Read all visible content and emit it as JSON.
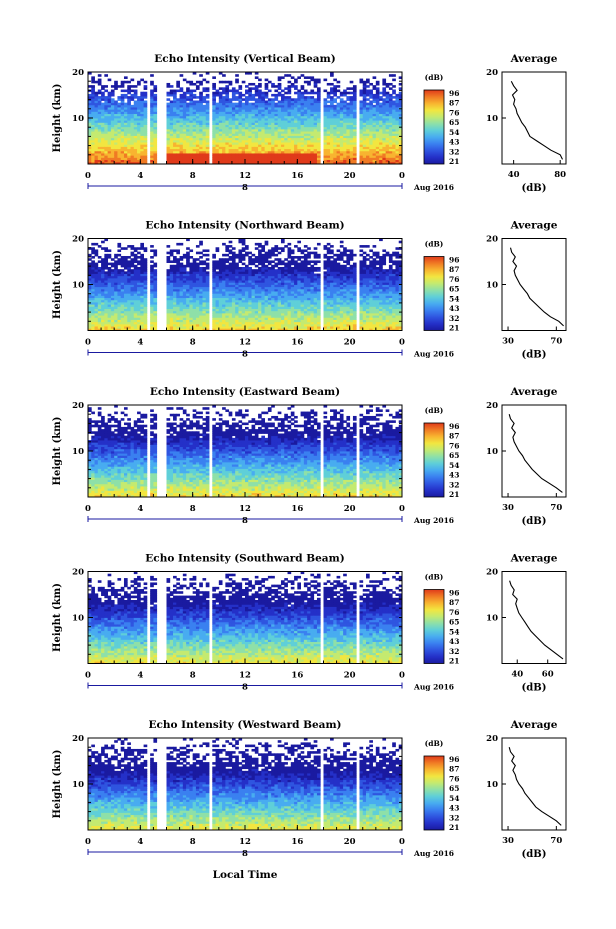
{
  "figure": {
    "time_label": "Local Time",
    "date_day": "8",
    "date_month": "Aug 2016",
    "y_label": "Height (km)",
    "cbar_unit": "(dB)",
    "avg_title": "Average",
    "avg_xlabel": "(dB)"
  },
  "colors": {
    "colormap": [
      "#1a1aa0",
      "#2430c8",
      "#2f55e0",
      "#3a80f0",
      "#48acf0",
      "#5fcfd8",
      "#8ee0a8",
      "#c4ea70",
      "#f2e640",
      "#f8b430",
      "#f07a24",
      "#e03a1a"
    ],
    "gap": "#ffffff",
    "axis_line": "#000000",
    "date_line": "#1a1aa0"
  },
  "chart_data": [
    {
      "type": "heatmap",
      "title": "Echo Intensity (Vertical Beam)",
      "xlabel": "",
      "ylabel": "Height (km)",
      "xlim": [
        0,
        24
      ],
      "ylim": [
        0,
        20
      ],
      "xticks": [
        "0",
        "4",
        "8",
        "12",
        "16",
        "20",
        "0"
      ],
      "yticks": [
        "20",
        "10"
      ],
      "colorbar_ticks": [
        "96",
        "87",
        "76",
        "65",
        "54",
        "43",
        "32",
        "21"
      ],
      "colorbar_range": [
        21,
        96
      ],
      "data_gaps_hours": [
        [
          4.6,
          4.8
        ],
        [
          5.3,
          5.9
        ],
        [
          9.3,
          9.5
        ],
        [
          17.7,
          17.9
        ],
        [
          20.5,
          20.7
        ]
      ],
      "average_profile": {
        "xlabel": "(dB)",
        "xticks": [
          "40",
          "80"
        ],
        "xlim": [
          30,
          85
        ],
        "ylim": [
          0,
          20
        ],
        "height_km": [
          1,
          2,
          3,
          4,
          5,
          6,
          7,
          8,
          9,
          10,
          11,
          12,
          13,
          14,
          15,
          16,
          17,
          18
        ],
        "value_db": [
          82,
          80,
          72,
          66,
          60,
          54,
          52,
          50,
          47,
          45,
          43,
          42,
          40,
          41,
          39,
          43,
          40,
          38
        ]
      }
    },
    {
      "type": "heatmap",
      "title": "Echo Intensity (Northward Beam)",
      "xlabel": "",
      "ylabel": "Height (km)",
      "xlim": [
        0,
        24
      ],
      "ylim": [
        0,
        20
      ],
      "xticks": [
        "0",
        "4",
        "8",
        "12",
        "16",
        "20",
        "0"
      ],
      "yticks": [
        "20",
        "10"
      ],
      "colorbar_ticks": [
        "96",
        "87",
        "76",
        "65",
        "54",
        "43",
        "32",
        "21"
      ],
      "colorbar_range": [
        21,
        96
      ],
      "data_gaps_hours": [
        [
          4.6,
          4.8
        ],
        [
          5.3,
          5.9
        ],
        [
          9.3,
          9.5
        ],
        [
          17.7,
          17.9
        ],
        [
          20.5,
          20.7
        ]
      ],
      "average_profile": {
        "xlabel": "(dB)",
        "xticks": [
          "30",
          "70"
        ],
        "xlim": [
          25,
          78
        ],
        "ylim": [
          0,
          20
        ],
        "height_km": [
          1,
          2,
          3,
          4,
          5,
          6,
          7,
          8,
          9,
          10,
          11,
          12,
          13,
          14,
          15,
          16,
          17,
          18
        ],
        "value_db": [
          76,
          72,
          65,
          60,
          56,
          52,
          48,
          46,
          43,
          40,
          38,
          36,
          35,
          37,
          34,
          36,
          33,
          32
        ]
      }
    },
    {
      "type": "heatmap",
      "title": "Echo Intensity (Eastward Beam)",
      "xlabel": "",
      "ylabel": "Height (km)",
      "xlim": [
        0,
        24
      ],
      "ylim": [
        0,
        20
      ],
      "xticks": [
        "0",
        "4",
        "8",
        "12",
        "16",
        "20",
        "0"
      ],
      "yticks": [
        "20",
        "10"
      ],
      "colorbar_ticks": [
        "96",
        "87",
        "76",
        "65",
        "54",
        "43",
        "32",
        "21"
      ],
      "colorbar_range": [
        21,
        96
      ],
      "data_gaps_hours": [
        [
          4.6,
          4.8
        ],
        [
          5.3,
          5.9
        ],
        [
          9.3,
          9.5
        ],
        [
          17.7,
          17.9
        ],
        [
          20.5,
          20.7
        ]
      ],
      "average_profile": {
        "xlabel": "(dB)",
        "xticks": [
          "30",
          "70"
        ],
        "xlim": [
          25,
          78
        ],
        "ylim": [
          0,
          20
        ],
        "height_km": [
          1,
          2,
          3,
          4,
          5,
          6,
          7,
          8,
          9,
          10,
          11,
          12,
          13,
          14,
          15,
          16,
          17,
          18
        ],
        "value_db": [
          75,
          70,
          64,
          58,
          54,
          50,
          47,
          44,
          42,
          39,
          37,
          35,
          34,
          36,
          33,
          35,
          32,
          31
        ]
      }
    },
    {
      "type": "heatmap",
      "title": "Echo Intensity (Southward Beam)",
      "xlabel": "",
      "ylabel": "Height (km)",
      "xlim": [
        0,
        24
      ],
      "ylim": [
        0,
        20
      ],
      "xticks": [
        "0",
        "4",
        "8",
        "12",
        "16",
        "20",
        "0"
      ],
      "yticks": [
        "20",
        "10"
      ],
      "colorbar_ticks": [
        "96",
        "87",
        "76",
        "65",
        "54",
        "43",
        "32",
        "21"
      ],
      "colorbar_range": [
        21,
        96
      ],
      "data_gaps_hours": [
        [
          4.6,
          4.8
        ],
        [
          5.3,
          5.9
        ],
        [
          9.3,
          9.5
        ],
        [
          17.7,
          17.9
        ],
        [
          20.5,
          20.7
        ]
      ],
      "average_profile": {
        "xlabel": "(dB)",
        "xticks": [
          "40",
          "60"
        ],
        "xlim": [
          30,
          72
        ],
        "ylim": [
          0,
          20
        ],
        "height_km": [
          1,
          2,
          3,
          4,
          5,
          6,
          7,
          8,
          9,
          10,
          11,
          12,
          13,
          14,
          15,
          16,
          17,
          18
        ],
        "value_db": [
          70,
          66,
          62,
          58,
          55,
          52,
          49,
          47,
          45,
          43,
          41,
          40,
          39,
          40,
          37,
          38,
          36,
          35
        ]
      }
    },
    {
      "type": "heatmap",
      "title": "Echo Intensity (Westward Beam)",
      "xlabel": "Local Time",
      "ylabel": "Height (km)",
      "xlim": [
        0,
        24
      ],
      "ylim": [
        0,
        20
      ],
      "xticks": [
        "0",
        "4",
        "8",
        "12",
        "16",
        "20",
        "0"
      ],
      "yticks": [
        "20",
        "10"
      ],
      "colorbar_ticks": [
        "96",
        "87",
        "76",
        "65",
        "54",
        "43",
        "32",
        "21"
      ],
      "colorbar_range": [
        21,
        96
      ],
      "data_gaps_hours": [
        [
          4.6,
          4.8
        ],
        [
          5.3,
          5.9
        ],
        [
          9.3,
          9.5
        ],
        [
          17.7,
          17.9
        ],
        [
          20.5,
          20.7
        ]
      ],
      "average_profile": {
        "xlabel": "(dB)",
        "xticks": [
          "30",
          "70"
        ],
        "xlim": [
          25,
          78
        ],
        "ylim": [
          0,
          20
        ],
        "height_km": [
          1,
          2,
          3,
          4,
          5,
          6,
          7,
          8,
          9,
          10,
          11,
          12,
          13,
          14,
          15,
          16,
          17,
          18
        ],
        "value_db": [
          74,
          70,
          64,
          58,
          53,
          50,
          47,
          44,
          42,
          39,
          37,
          36,
          34,
          36,
          33,
          35,
          32,
          31
        ]
      }
    }
  ]
}
